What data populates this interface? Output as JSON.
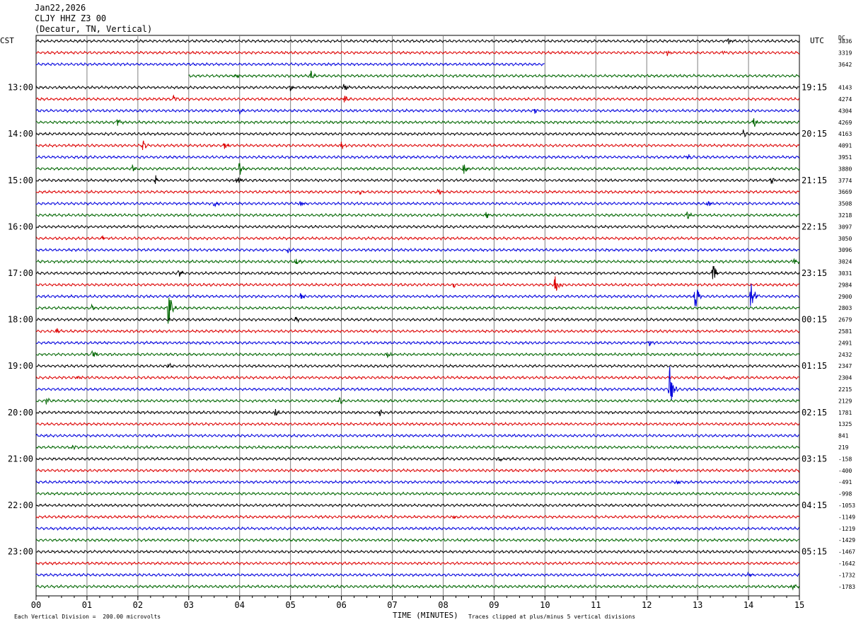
{
  "header": {
    "date": "Jan22,2026",
    "station": "CLJY HHZ Z3 00",
    "location": "(Decatur, TN, Vertical)"
  },
  "left_timezone": "CST",
  "right_timezone": "UTC",
  "dc_label": "DC",
  "footer": {
    "scale_note": "Each Vertical Division =  200.00 microvolts",
    "xaxis_title": "TIME (MINUTES)",
    "clip_note": "Traces clipped at plus/minus 5 vertical divisions"
  },
  "colors": {
    "trace_cycle": [
      "#000000",
      "#dd0000",
      "#0000dd",
      "#006600"
    ],
    "grid": "#808080"
  },
  "chart_data": {
    "type": "line",
    "title": "CLJY HHZ Z3 00",
    "xlabel": "TIME (MINUTES)",
    "xlim": [
      0,
      15
    ],
    "x_ticks": [
      "00",
      "01",
      "02",
      "03",
      "04",
      "05",
      "06",
      "07",
      "08",
      "09",
      "10",
      "11",
      "12",
      "13",
      "14",
      "15"
    ],
    "left_hour_labels": [
      "13:00",
      "14:00",
      "15:00",
      "16:00",
      "17:00",
      "18:00",
      "19:00",
      "20:00",
      "21:00",
      "22:00",
      "23:00"
    ],
    "right_hour_labels": [
      "19:15",
      "20:15",
      "21:15",
      "22:15",
      "23:15",
      "00:15",
      "01:15",
      "02:15",
      "03:15",
      "04:15",
      "05:15"
    ],
    "dc_offsets": [
      "3836",
      "3319",
      "3642",
      "",
      "4143",
      "4274",
      "4304",
      "4269",
      "4163",
      "4091",
      "3951",
      "3880",
      "3774",
      "3669",
      "3508",
      "3218",
      "3097",
      "3050",
      "3096",
      "3024",
      "3031",
      "2984",
      "2900",
      "2803",
      "2679",
      "2581",
      "2491",
      "2432",
      "2347",
      "2304",
      "2215",
      "2129",
      "1781",
      "1325",
      "841",
      "219",
      "-158",
      "-400",
      "-491",
      "-998",
      "-1053",
      "-1149",
      "-1219",
      "-1429",
      "-1467",
      "-1642",
      "-1732",
      "-1783"
    ],
    "trace_count": 48,
    "events": [
      {
        "trace": 0,
        "minute": 13.6,
        "amp": 6
      },
      {
        "trace": 1,
        "minute": 12.4,
        "amp": 4
      },
      {
        "trace": 1,
        "minute": 13.5,
        "amp": 5
      },
      {
        "trace": 3,
        "minute": 3.9,
        "amp": 6
      },
      {
        "trace": 3,
        "minute": 5.4,
        "amp": 7
      },
      {
        "trace": 4,
        "minute": 6.05,
        "amp": 9
      },
      {
        "trace": 4,
        "minute": 5.0,
        "amp": 5
      },
      {
        "trace": 5,
        "minute": 2.7,
        "amp": 5
      },
      {
        "trace": 5,
        "minute": 6.05,
        "amp": 6
      },
      {
        "trace": 6,
        "minute": 4.0,
        "amp": 5
      },
      {
        "trace": 6,
        "minute": 9.8,
        "amp": 5
      },
      {
        "trace": 7,
        "minute": 1.6,
        "amp": 6
      },
      {
        "trace": 7,
        "minute": 14.1,
        "amp": 9
      },
      {
        "trace": 8,
        "minute": 13.9,
        "amp": 6
      },
      {
        "trace": 9,
        "minute": 2.1,
        "amp": 10
      },
      {
        "trace": 9,
        "minute": 3.7,
        "amp": 7
      },
      {
        "trace": 9,
        "minute": 6.0,
        "amp": 6
      },
      {
        "trace": 10,
        "minute": 12.8,
        "amp": 6
      },
      {
        "trace": 11,
        "minute": 4.0,
        "amp": 14
      },
      {
        "trace": 11,
        "minute": 8.4,
        "amp": 11
      },
      {
        "trace": 11,
        "minute": 1.9,
        "amp": 6
      },
      {
        "trace": 12,
        "minute": 3.95,
        "amp": 12
      },
      {
        "trace": 12,
        "minute": 2.35,
        "amp": 7
      },
      {
        "trace": 12,
        "minute": 14.45,
        "amp": 6
      },
      {
        "trace": 13,
        "minute": 6.35,
        "amp": 5
      },
      {
        "trace": 13,
        "minute": 7.9,
        "amp": 5
      },
      {
        "trace": 14,
        "minute": 3.5,
        "amp": 6
      },
      {
        "trace": 14,
        "minute": 5.2,
        "amp": 5
      },
      {
        "trace": 14,
        "minute": 13.2,
        "amp": 5
      },
      {
        "trace": 15,
        "minute": 12.8,
        "amp": 6
      },
      {
        "trace": 15,
        "minute": 8.85,
        "amp": 5
      },
      {
        "trace": 17,
        "minute": 1.3,
        "amp": 5
      },
      {
        "trace": 18,
        "minute": 4.95,
        "amp": 8
      },
      {
        "trace": 19,
        "minute": 5.1,
        "amp": 6
      },
      {
        "trace": 19,
        "minute": 14.9,
        "amp": 7
      },
      {
        "trace": 20,
        "minute": 13.3,
        "amp": 18
      },
      {
        "trace": 20,
        "minute": 2.8,
        "amp": 6
      },
      {
        "trace": 21,
        "minute": 10.2,
        "amp": 22
      },
      {
        "trace": 21,
        "minute": 8.2,
        "amp": 5
      },
      {
        "trace": 22,
        "minute": 12.95,
        "amp": 30
      },
      {
        "trace": 22,
        "minute": 14.05,
        "amp": 30
      },
      {
        "trace": 22,
        "minute": 5.2,
        "amp": 5
      },
      {
        "trace": 23,
        "minute": 2.6,
        "amp": 30
      },
      {
        "trace": 23,
        "minute": 1.1,
        "amp": 5
      },
      {
        "trace": 24,
        "minute": 5.1,
        "amp": 5
      },
      {
        "trace": 25,
        "minute": 0.4,
        "amp": 4
      },
      {
        "trace": 26,
        "minute": 12.05,
        "amp": 6
      },
      {
        "trace": 27,
        "minute": 1.1,
        "amp": 9
      },
      {
        "trace": 27,
        "minute": 6.9,
        "amp": 6
      },
      {
        "trace": 28,
        "minute": 2.6,
        "amp": 4
      },
      {
        "trace": 29,
        "minute": 0.8,
        "amp": 5
      },
      {
        "trace": 29,
        "minute": 13.6,
        "amp": 5
      },
      {
        "trace": 30,
        "minute": 12.45,
        "amp": 40
      },
      {
        "trace": 31,
        "minute": 0.2,
        "amp": 6
      },
      {
        "trace": 31,
        "minute": 5.95,
        "amp": 7
      },
      {
        "trace": 32,
        "minute": 4.7,
        "amp": 6
      },
      {
        "trace": 32,
        "minute": 6.75,
        "amp": 6
      },
      {
        "trace": 35,
        "minute": 0.7,
        "amp": 5
      },
      {
        "trace": 36,
        "minute": 9.1,
        "amp": 4
      },
      {
        "trace": 38,
        "minute": 12.6,
        "amp": 5
      },
      {
        "trace": 41,
        "minute": 8.2,
        "amp": 4
      },
      {
        "trace": 46,
        "minute": 14.0,
        "amp": 5
      },
      {
        "trace": 47,
        "minute": 14.85,
        "amp": 6
      }
    ]
  }
}
